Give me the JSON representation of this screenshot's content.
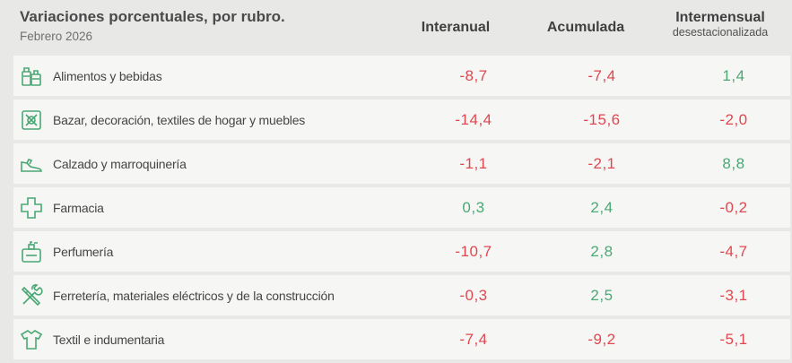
{
  "header": {
    "title": "Variaciones porcentuales, por rubro.",
    "subtitle": "Febrero 2026",
    "col_interanual": "Interanual",
    "col_acumulada": "Acumulada",
    "col_intermensual": "Intermensual",
    "col_intermensual_sub": "desestacionalizada"
  },
  "colors": {
    "negative": "#e0474f",
    "positive": "#4aa874",
    "icon": "#4aa874"
  },
  "rows": [
    {
      "icon": "grocery-icon",
      "label": "Alimentos y bebidas",
      "interanual": "-8,7",
      "acumulada": "-7,4",
      "intermensual": "1,4"
    },
    {
      "icon": "home-goods-icon",
      "label": "Bazar, decoración, textiles de hogar y muebles",
      "interanual": "-14,4",
      "acumulada": "-15,6",
      "intermensual": "-2,0"
    },
    {
      "icon": "shoe-icon",
      "label": "Calzado y marroquinería",
      "interanual": "-1,1",
      "acumulada": "-2,1",
      "intermensual": "8,8"
    },
    {
      "icon": "pharmacy-cross-icon",
      "label": "Farmacia",
      "interanual": "0,3",
      "acumulada": "2,4",
      "intermensual": "-0,2"
    },
    {
      "icon": "perfume-icon",
      "label": "Perfumería",
      "interanual": "-10,7",
      "acumulada": "2,8",
      "intermensual": "-4,7"
    },
    {
      "icon": "tools-icon",
      "label": "Ferretería, materiales eléctricos y de la construcción",
      "interanual": "-0,3",
      "acumulada": "2,5",
      "intermensual": "-3,1"
    },
    {
      "icon": "shirt-icon",
      "label": "Textil e indumentaria",
      "interanual": "-7,4",
      "acumulada": "-9,2",
      "intermensual": "-5,1"
    }
  ]
}
